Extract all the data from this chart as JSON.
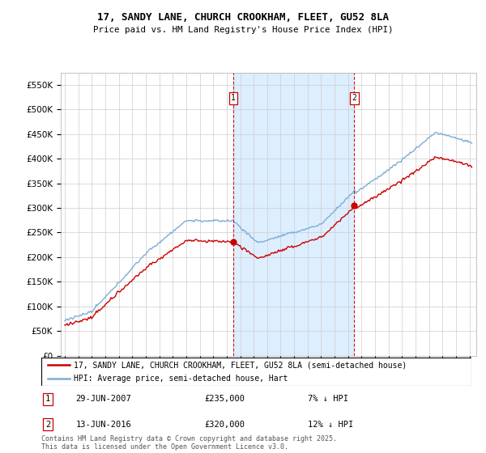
{
  "title": "17, SANDY LANE, CHURCH CROOKHAM, FLEET, GU52 8LA",
  "subtitle": "Price paid vs. HM Land Registry's House Price Index (HPI)",
  "ylim": [
    0,
    575000
  ],
  "yticks": [
    0,
    50000,
    100000,
    150000,
    200000,
    250000,
    300000,
    350000,
    400000,
    450000,
    500000,
    550000
  ],
  "ytick_labels": [
    "£0",
    "£50K",
    "£100K",
    "£150K",
    "£200K",
    "£250K",
    "£300K",
    "£350K",
    "£400K",
    "£450K",
    "£500K",
    "£550K"
  ],
  "red_line_label": "17, SANDY LANE, CHURCH CROOKHAM, FLEET, GU52 8LA (semi-detached house)",
  "blue_line_label": "HPI: Average price, semi-detached house, Hart",
  "sale1_date": "29-JUN-2007",
  "sale1_price": "£235,000",
  "sale1_pct": "7% ↓ HPI",
  "sale1_year": 2007.49,
  "sale1_value": 235000,
  "sale2_date": "13-JUN-2016",
  "sale2_price": "£320,000",
  "sale2_pct": "12% ↓ HPI",
  "sale2_year": 2016.45,
  "sale2_value": 320000,
  "footer": "Contains HM Land Registry data © Crown copyright and database right 2025.\nThis data is licensed under the Open Government Licence v3.0.",
  "red_color": "#cc0000",
  "blue_color": "#7eadd4",
  "shade_color": "#ddeeff",
  "grid_color": "#cccccc"
}
